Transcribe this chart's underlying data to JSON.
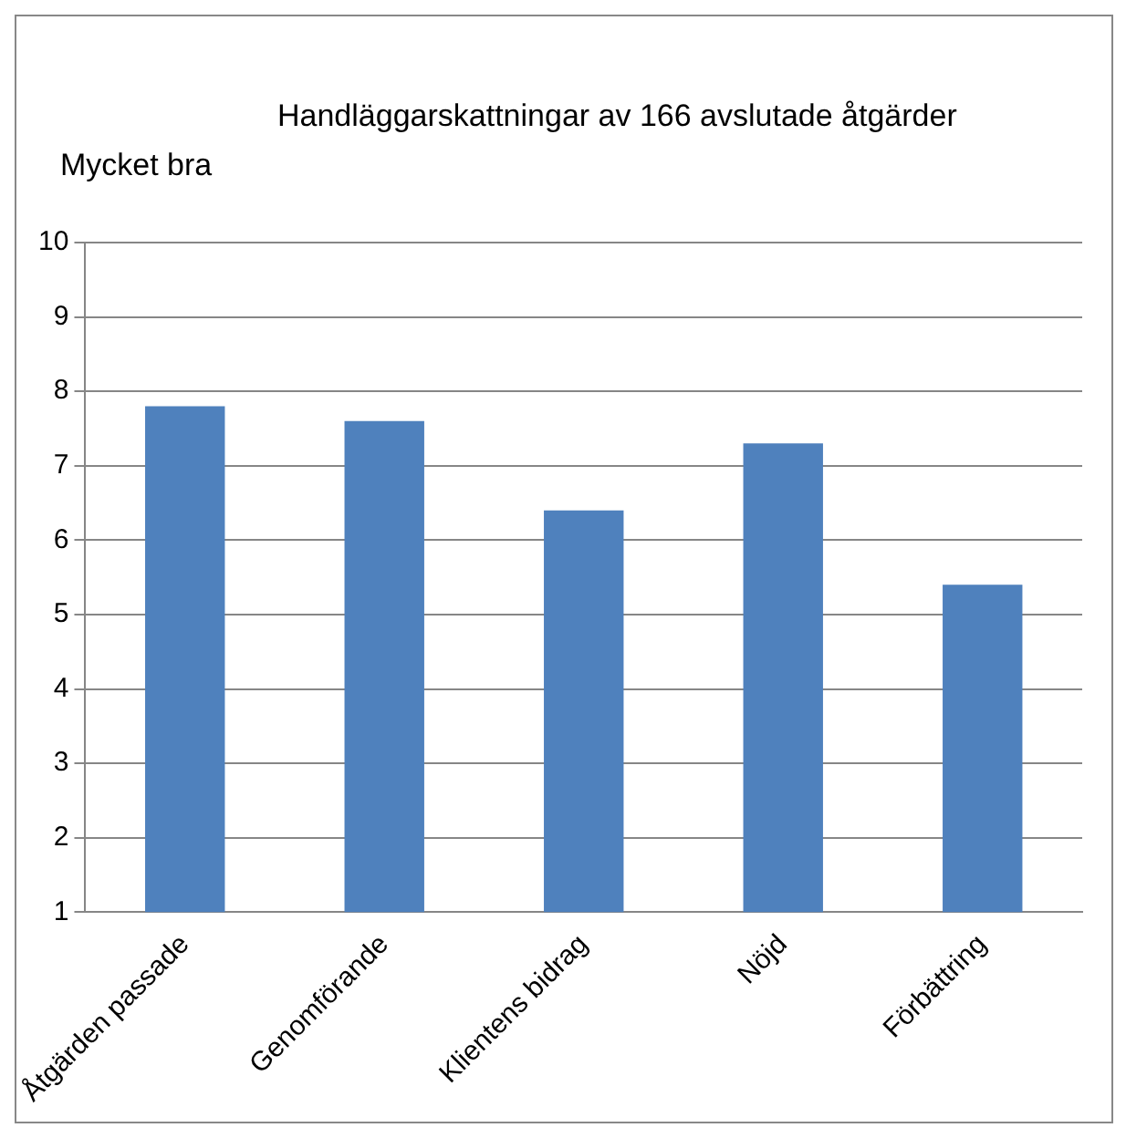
{
  "chart_data": {
    "type": "bar",
    "title": "Handläggarskattningar av 166 avslutade åtgärder",
    "ylabel": "Mycket bra",
    "categories": [
      "Åtgärden passade",
      "Genomförande",
      "Klientens bidrag",
      "Nöjd",
      "Förbättring"
    ],
    "values": [
      7.8,
      7.6,
      6.4,
      7.3,
      5.4
    ],
    "color": "#4f81bd",
    "ylim": [
      1,
      10
    ],
    "yticks": [
      1,
      2,
      3,
      4,
      5,
      6,
      7,
      8,
      9,
      10
    ],
    "grid": "y",
    "legend": false
  }
}
